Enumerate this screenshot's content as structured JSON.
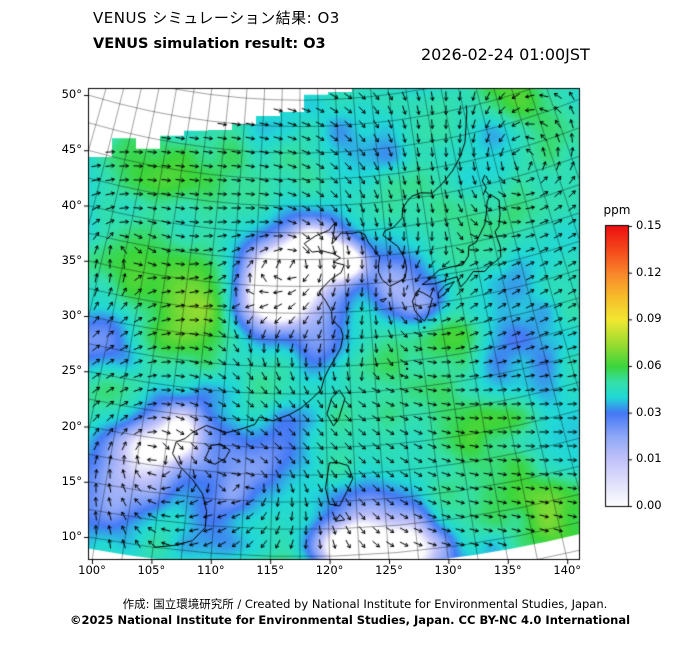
{
  "header": {
    "title_jp": "VENUS シミュレーション結果: O3",
    "title_en": "VENUS simulation result: O3",
    "timestamp": "2026-02-24 01:00JST"
  },
  "footer": {
    "credit": "作成: 国立環境研究所 / Created by National Institute for Environmental Studies, Japan.",
    "license": "©2025 National Institute for Environmental Studies, Japan. CC BY-NC 4.0 International"
  },
  "chart_data": {
    "type": "heatmap",
    "title": "VENUS simulation result: O3",
    "variable": "O3",
    "valid_time": "2026-02-24 01:00JST",
    "units": "ppm",
    "overlay": "wind-vectors",
    "x_axis": {
      "ticks": [
        "100°",
        "105°",
        "110°",
        "115°",
        "120°",
        "125°",
        "130°",
        "135°",
        "140°"
      ],
      "range": [
        100,
        140
      ]
    },
    "y_axis": {
      "ticks": [
        "50°",
        "45°",
        "40°",
        "35°",
        "30°",
        "25°",
        "20°",
        "15°",
        "10°"
      ],
      "range": [
        10,
        50
      ]
    },
    "colorbar": {
      "title": "ppm",
      "ticks": [
        "0.15",
        "0.12",
        "0.09",
        "0.06",
        "0.03",
        "0.01",
        "0.00"
      ],
      "tick_values": [
        0.15,
        0.12,
        0.09,
        0.06,
        0.03,
        0.01,
        0.0
      ],
      "gradient": [
        [
          0.0,
          "#ffffff"
        ],
        [
          0.01,
          "#c3c3fa"
        ],
        [
          0.02,
          "#8ea8f7"
        ],
        [
          0.03,
          "#4479f5"
        ],
        [
          0.04,
          "#21d8d8"
        ],
        [
          0.05,
          "#35e0a8"
        ],
        [
          0.06,
          "#3bd53b"
        ],
        [
          0.075,
          "#9fdc30"
        ],
        [
          0.09,
          "#f2e832"
        ],
        [
          0.105,
          "#f7bc2b"
        ],
        [
          0.12,
          "#f9862a"
        ],
        [
          0.135,
          "#f4481c"
        ],
        [
          0.15,
          "#ee1111"
        ]
      ]
    }
  }
}
